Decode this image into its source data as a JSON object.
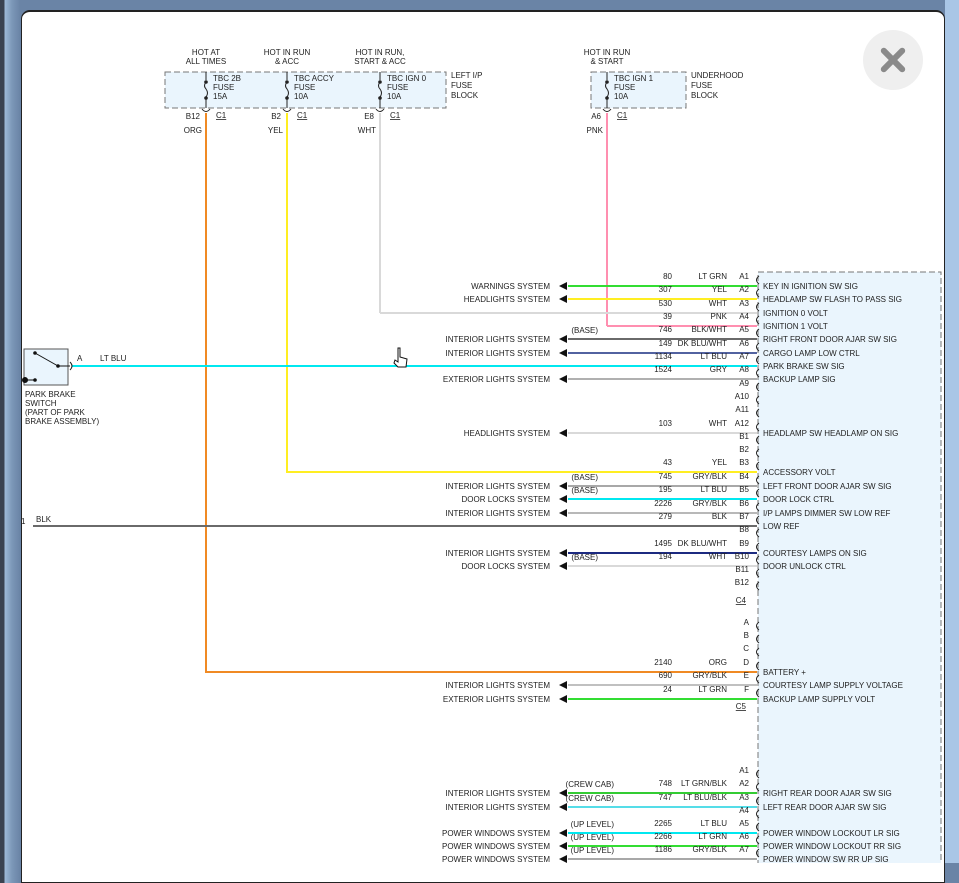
{
  "fuse_blocks": [
    {
      "name": [
        "LEFT I/P",
        "FUSE",
        "BLOCK"
      ],
      "fuses": [
        {
          "hot": [
            "HOT AT",
            "ALL TIMES"
          ],
          "fuse": [
            "TBC 2B",
            "FUSE",
            "15A"
          ],
          "pin": "B12",
          "conn": "C1",
          "color": "ORG",
          "hex": "#f08a24"
        },
        {
          "hot": [
            "HOT IN RUN",
            "& ACC"
          ],
          "fuse": [
            "TBC ACCY",
            "FUSE",
            "10A"
          ],
          "pin": "B2",
          "conn": "C1",
          "color": "YEL",
          "hex": "#ffee22"
        },
        {
          "hot": [
            "HOT IN RUN,",
            "START & ACC"
          ],
          "fuse": [
            "TBC IGN 0",
            "FUSE",
            "10A"
          ],
          "pin": "E8",
          "conn": "C1",
          "color": "WHT",
          "hex": "#d9d9d9"
        }
      ]
    },
    {
      "name": [
        "UNDERHOOD",
        "FUSE",
        "BLOCK"
      ],
      "fuses": [
        {
          "hot": [
            "HOT IN RUN",
            "& START"
          ],
          "fuse": [
            "TBC IGN 1",
            "FUSE",
            "10A"
          ],
          "pin": "A6",
          "conn": "C1",
          "color": "PNK",
          "hex": "#ff8fb0"
        }
      ]
    }
  ],
  "park_brake_switch": {
    "label": [
      "PARK BRAKE",
      "SWITCH",
      "(PART OF PARK",
      "BRAKE ASSEMBLY)"
    ],
    "pin": "A",
    "wire_color": "LT BLU"
  },
  "ground_wire": {
    "pin": "1",
    "color": "BLK"
  },
  "connector_rows": [
    {
      "pin": "A1",
      "circuit": "80",
      "color": "LT GRN",
      "hex": "#33dd33",
      "system": "WARNINGS SYSTEM",
      "signal": "KEY IN IGNITION SW SIG"
    },
    {
      "pin": "A2",
      "circuit": "307",
      "color": "YEL",
      "hex": "#ffee22",
      "system": "HEADLIGHTS SYSTEM",
      "signal": "HEADLAMP SW FLASH TO PASS SIG"
    },
    {
      "pin": "A3",
      "circuit": "530",
      "color": "WHT",
      "hex": "#d9d9d9",
      "signal": "IGNITION 0 VOLT"
    },
    {
      "pin": "A4",
      "circuit": "39",
      "color": "PNK",
      "hex": "#ff8fb0",
      "signal": "IGNITION 1 VOLT"
    },
    {
      "pin": "A5",
      "option": "(BASE)",
      "circuit": "746",
      "color": "BLK/WHT",
      "hex": "#6a6a6a",
      "system": "INTERIOR LIGHTS SYSTEM",
      "signal": "RIGHT FRONT DOOR AJAR SW SIG"
    },
    {
      "pin": "A6",
      "circuit": "149",
      "color": "DK BLU/WHT",
      "hex": "#5262a0",
      "system": "INTERIOR LIGHTS SYSTEM",
      "signal": "CARGO LAMP LOW CTRL"
    },
    {
      "pin": "A7",
      "circuit": "1134",
      "color": "LT BLU",
      "hex": "#00e8f0",
      "signal": "PARK BRAKE SW SIG"
    },
    {
      "pin": "A8",
      "circuit": "1524",
      "color": "GRY",
      "hex": "#b0b0b0",
      "system": "EXTERIOR LIGHTS SYSTEM",
      "signal": "BACKUP LAMP SIG"
    },
    {
      "pin": "A9"
    },
    {
      "pin": "A10"
    },
    {
      "pin": "A11"
    },
    {
      "pin": "A12",
      "circuit": "103",
      "color": "WHT",
      "hex": "#d9d9d9",
      "system": "HEADLIGHTS SYSTEM",
      "signal": "HEADLAMP SW HEADLAMP ON SIG"
    },
    {
      "pin": "B1"
    },
    {
      "pin": "B2"
    },
    {
      "pin": "B3",
      "circuit": "43",
      "color": "YEL",
      "hex": "#ffee22",
      "signal": "ACCESSORY VOLT"
    },
    {
      "pin": "B4",
      "option": "(BASE)",
      "circuit": "745",
      "color": "GRY/BLK",
      "hex": "#a8a8a8",
      "system": "INTERIOR LIGHTS SYSTEM",
      "signal": "LEFT FRONT DOOR AJAR SW SIG"
    },
    {
      "pin": "B5",
      "option": "(BASE)",
      "circuit": "195",
      "color": "LT BLU",
      "hex": "#00e8f0",
      "system": "DOOR LOCKS SYSTEM",
      "signal": "DOOR LOCK CTRL"
    },
    {
      "pin": "B6",
      "circuit": "2226",
      "color": "GRY/BLK",
      "hex": "#b8b8b8",
      "system": "INTERIOR LIGHTS SYSTEM",
      "signal": "I/P LAMPS DIMMER SW LOW REF"
    },
    {
      "pin": "B7",
      "circuit": "279",
      "color": "BLK",
      "hex": "#6a6a6a",
      "signal": "LOW REF"
    },
    {
      "pin": "B8"
    },
    {
      "pin": "B9",
      "circuit": "1495",
      "color": "DK BLU/WHT",
      "hex": "#1c2a80",
      "system": "INTERIOR LIGHTS SYSTEM",
      "signal": "COURTESY LAMPS ON SIG"
    },
    {
      "pin": "B10",
      "option": "(BASE)",
      "circuit": "194",
      "color": "WHT",
      "hex": "#d9d9d9",
      "system": "DOOR LOCKS SYSTEM",
      "signal": "DOOR UNLOCK CTRL"
    },
    {
      "pin": "B11"
    },
    {
      "pin": "B12"
    },
    {
      "conn": "C4"
    },
    {
      "pin": "A"
    },
    {
      "pin": "B"
    },
    {
      "pin": "C"
    },
    {
      "pin": "D",
      "circuit": "2140",
      "color": "ORG",
      "hex": "#f08a24",
      "signal": "BATTERY +"
    },
    {
      "pin": "E",
      "circuit": "690",
      "color": "GRY/BLK",
      "hex": "#c0c0c0",
      "system": "INTERIOR LIGHTS SYSTEM",
      "signal": "COURTESY LAMP SUPPLY VOLTAGE"
    },
    {
      "pin": "F",
      "circuit": "24",
      "color": "LT GRN",
      "hex": "#33dd33",
      "system": "EXTERIOR LIGHTS SYSTEM",
      "signal": "BACKUP LAMP SUPPLY VOLT"
    },
    {
      "conn": "C5"
    },
    {
      "pin": "A1"
    },
    {
      "pin": "A2",
      "option": "(CREW CAB)",
      "circuit": "748",
      "color": "LT GRN/BLK",
      "hex": "#33cc33",
      "system": "INTERIOR LIGHTS SYSTEM",
      "signal": "RIGHT REAR DOOR AJAR SW SIG"
    },
    {
      "pin": "A3",
      "option": "(CREW CAB)",
      "circuit": "747",
      "color": "LT BLU/BLK",
      "hex": "#55dde8",
      "system": "INTERIOR LIGHTS SYSTEM",
      "signal": "LEFT REAR DOOR AJAR SW SIG"
    },
    {
      "pin": "A4"
    },
    {
      "pin": "A5",
      "option": "(UP LEVEL)",
      "circuit": "2265",
      "color": "LT BLU",
      "hex": "#00e8f0",
      "system": "POWER WINDOWS SYSTEM",
      "signal": "POWER WINDOW LOCKOUT LR SIG"
    },
    {
      "pin": "A6",
      "option": "(UP LEVEL)",
      "circuit": "2266",
      "color": "LT GRN",
      "hex": "#33dd33",
      "system": "POWER WINDOWS SYSTEM",
      "signal": "POWER WINDOW LOCKOUT RR SIG"
    },
    {
      "pin": "A7",
      "option": "(UP LEVEL)",
      "circuit": "1186",
      "color": "GRY/BLK",
      "hex": "#a8a8a8",
      "system": "POWER WINDOWS SYSTEM",
      "signal": "POWER WINDOW SW RR UP SIG"
    }
  ],
  "close_button": {
    "icon": "close-icon"
  }
}
